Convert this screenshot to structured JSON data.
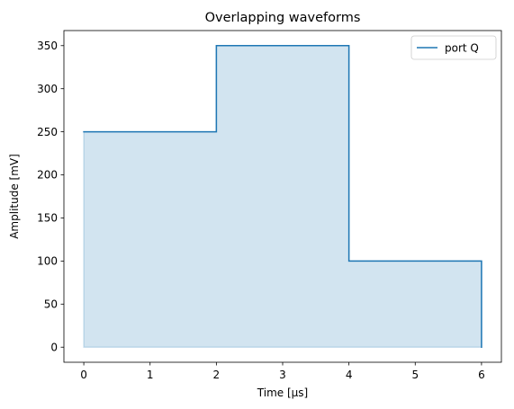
{
  "chart_data": {
    "type": "area",
    "title": "Overlapping waveforms",
    "xlabel": "Time [µs]",
    "ylabel": "Amplitude [mV]",
    "xlim": [
      -0.3,
      6.3
    ],
    "ylim": [
      -17.5,
      367.5
    ],
    "xticks": [
      0,
      1,
      2,
      3,
      4,
      5,
      6
    ],
    "yticks": [
      0,
      50,
      100,
      150,
      200,
      250,
      300,
      350
    ],
    "grid": false,
    "legend": {
      "position": "top-right"
    },
    "series": [
      {
        "name": "port Q",
        "color": "#1f77b4",
        "fill_color": "#1f77b4",
        "fill_opacity": 0.2,
        "step": "post",
        "x": [
          0,
          2,
          4,
          6
        ],
        "y": [
          250,
          350,
          100,
          0
        ]
      }
    ]
  }
}
